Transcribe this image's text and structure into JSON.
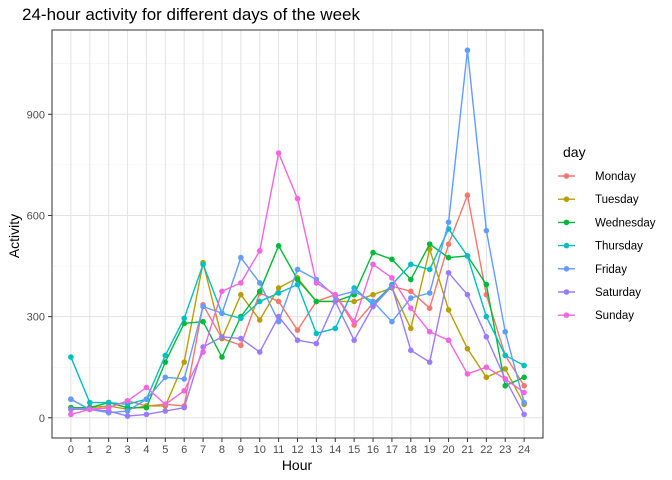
{
  "chart_data": {
    "type": "line",
    "title": "24-hour activity for different days of the week",
    "xlabel": "Hour",
    "ylabel": "Activity",
    "x": [
      0,
      1,
      2,
      3,
      4,
      5,
      6,
      7,
      8,
      9,
      10,
      11,
      12,
      13,
      14,
      15,
      16,
      17,
      18,
      19,
      20,
      21,
      22,
      23,
      24
    ],
    "xlim": [
      -1,
      25
    ],
    "ylim": [
      -60,
      1150
    ],
    "yticks": [
      0,
      300,
      600,
      900
    ],
    "grid": true,
    "legend": {
      "title": "day",
      "position": "right"
    },
    "series": [
      {
        "name": "Monday",
        "color": "#F8766D",
        "values": [
          55,
          25,
          30,
          50,
          35,
          40,
          35,
          335,
          235,
          215,
          370,
          345,
          260,
          345,
          365,
          275,
          340,
          390,
          375,
          325,
          515,
          660,
          365,
          185,
          95
        ]
      },
      {
        "name": "Tuesday",
        "color": "#B79F00",
        "values": [
          30,
          30,
          35,
          25,
          35,
          35,
          165,
          460,
          235,
          365,
          290,
          385,
          415,
          345,
          345,
          345,
          365,
          385,
          265,
          500,
          320,
          205,
          120,
          145,
          40
        ]
      },
      {
        "name": "Wednesday",
        "color": "#00BA38",
        "values": [
          30,
          30,
          45,
          30,
          30,
          165,
          280,
          285,
          180,
          300,
          375,
          510,
          410,
          345,
          345,
          365,
          490,
          470,
          410,
          515,
          475,
          480,
          395,
          95,
          120
        ]
      },
      {
        "name": "Thursday",
        "color": "#00BFC4",
        "values": [
          180,
          45,
          45,
          40,
          55,
          185,
          295,
          455,
          310,
          295,
          345,
          370,
          395,
          250,
          265,
          385,
          335,
          395,
          455,
          440,
          560,
          480,
          300,
          185,
          155
        ]
      },
      {
        "name": "Friday",
        "color": "#619CFF",
        "values": [
          55,
          25,
          15,
          20,
          55,
          120,
          115,
          330,
          310,
          475,
          400,
          285,
          440,
          410,
          360,
          375,
          345,
          285,
          355,
          370,
          580,
          1090,
          555,
          255,
          45
        ]
      },
      {
        "name": "Saturday",
        "color": "#9A7BFF",
        "values": [
          25,
          25,
          20,
          5,
          10,
          20,
          30,
          210,
          240,
          235,
          195,
          300,
          230,
          220,
          345,
          230,
          330,
          390,
          200,
          165,
          430,
          365,
          240,
          115,
          10
        ]
      },
      {
        "name": "Sunday",
        "color": "#F564E3",
        "values": [
          10,
          25,
          30,
          50,
          90,
          40,
          80,
          195,
          375,
          400,
          495,
          785,
          650,
          400,
          365,
          285,
          455,
          415,
          325,
          255,
          230,
          130,
          150,
          115,
          75
        ]
      }
    ]
  }
}
